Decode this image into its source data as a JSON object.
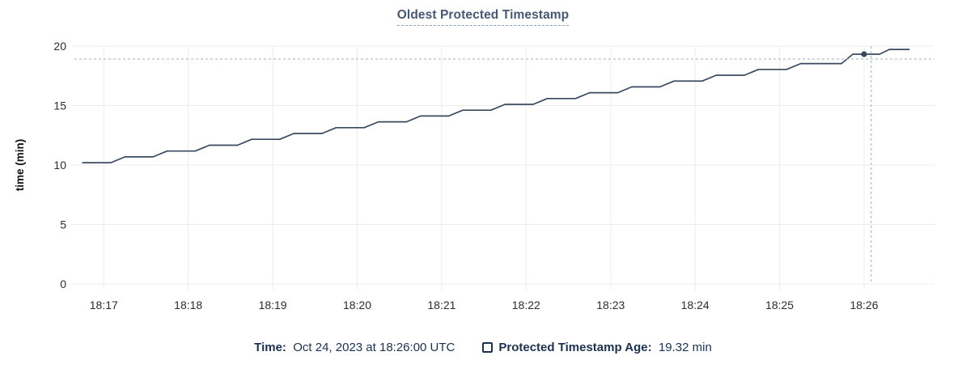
{
  "title": "Oldest Protected Timestamp",
  "colors": {
    "title": "#475872",
    "title_underline": "#8aa0bc",
    "line": "#394a5f",
    "dot": "#394a5f",
    "grid": "#ececec",
    "crosshair": "#9fafc0",
    "tick_label": "#2d2d2d",
    "axis_label": "#111111",
    "legend_text": "#1c3150"
  },
  "chart_data": {
    "type": "line",
    "title": "Oldest Protected Timestamp",
    "xlabel": "",
    "ylabel": "time (min)",
    "ylim": [
      0,
      20
    ],
    "y_ticks": [
      0,
      5,
      10,
      15,
      20
    ],
    "x_domain": [
      "18:16:38",
      "18:26:50"
    ],
    "x_ticks": [
      {
        "label": "18:17",
        "time": "18:17:00"
      },
      {
        "label": "18:18",
        "time": "18:18:00"
      },
      {
        "label": "18:19",
        "time": "18:19:00"
      },
      {
        "label": "18:20",
        "time": "18:20:00"
      },
      {
        "label": "18:21",
        "time": "18:21:00"
      },
      {
        "label": "18:22",
        "time": "18:22:00"
      },
      {
        "label": "18:23",
        "time": "18:23:00"
      },
      {
        "label": "18:24",
        "time": "18:24:00"
      },
      {
        "label": "18:25",
        "time": "18:25:00"
      },
      {
        "label": "18:26",
        "time": "18:26:00"
      }
    ],
    "grid": true,
    "legend_position": "bottom",
    "series": [
      {
        "name": "Protected Timestamp Age",
        "unit": "min",
        "points": [
          [
            "18:16:45",
            10.2
          ],
          [
            "18:17:05",
            10.2
          ],
          [
            "18:17:15",
            10.69
          ],
          [
            "18:17:35",
            10.69
          ],
          [
            "18:17:45",
            11.18
          ],
          [
            "18:18:05",
            11.18
          ],
          [
            "18:18:15",
            11.67
          ],
          [
            "18:18:35",
            11.67
          ],
          [
            "18:18:45",
            12.16
          ],
          [
            "18:19:05",
            12.16
          ],
          [
            "18:19:15",
            12.65
          ],
          [
            "18:19:35",
            12.65
          ],
          [
            "18:19:45",
            13.14
          ],
          [
            "18:20:05",
            13.14
          ],
          [
            "18:20:15",
            13.63
          ],
          [
            "18:20:35",
            13.63
          ],
          [
            "18:20:45",
            14.12
          ],
          [
            "18:21:05",
            14.12
          ],
          [
            "18:21:15",
            14.61
          ],
          [
            "18:21:35",
            14.61
          ],
          [
            "18:21:45",
            15.1
          ],
          [
            "18:22:05",
            15.1
          ],
          [
            "18:22:15",
            15.59
          ],
          [
            "18:22:35",
            15.59
          ],
          [
            "18:22:45",
            16.08
          ],
          [
            "18:23:05",
            16.08
          ],
          [
            "18:23:15",
            16.57
          ],
          [
            "18:23:35",
            16.57
          ],
          [
            "18:23:45",
            17.06
          ],
          [
            "18:24:05",
            17.06
          ],
          [
            "18:24:15",
            17.55
          ],
          [
            "18:24:35",
            17.55
          ],
          [
            "18:24:45",
            18.04
          ],
          [
            "18:25:05",
            18.04
          ],
          [
            "18:25:15",
            18.53
          ],
          [
            "18:25:44",
            18.53
          ],
          [
            "18:25:52",
            19.32
          ],
          [
            "18:26:11",
            19.32
          ],
          [
            "18:26:18",
            19.72
          ],
          [
            "18:26:32",
            19.72
          ]
        ]
      }
    ],
    "hover": {
      "cursor_time": "18:26:05",
      "cursor_value": 18.91,
      "point_time": "18:26:00",
      "point_value": 19.32
    }
  },
  "legend": {
    "time_label": "Time:",
    "time_value": "Oct 24, 2023 at 18:26:00 UTC",
    "series_label": "Protected Timestamp Age:",
    "series_value": "19.32 min"
  }
}
